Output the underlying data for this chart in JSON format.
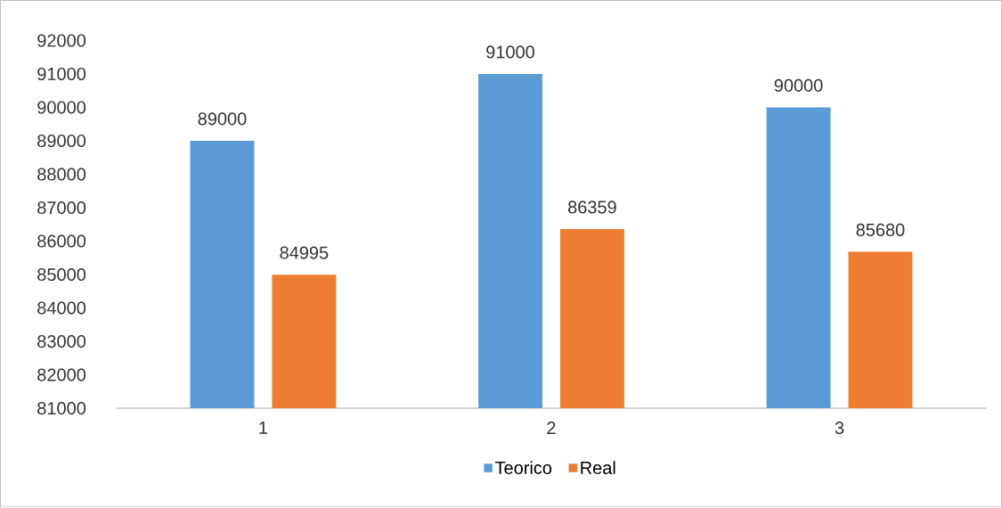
{
  "chart_data": {
    "type": "bar",
    "categories": [
      "1",
      "2",
      "3"
    ],
    "series": [
      {
        "name": "Teorico",
        "color": "#5b9bd5",
        "values": [
          89000,
          91000,
          90000
        ]
      },
      {
        "name": "Real",
        "color": "#ed7d31",
        "values": [
          84995,
          86359,
          85680
        ]
      }
    ],
    "ylim": [
      81000,
      92000
    ],
    "yticks": [
      81000,
      82000,
      83000,
      84000,
      85000,
      86000,
      87000,
      88000,
      89000,
      90000,
      91000,
      92000
    ],
    "data_labels": true,
    "legend": "bottom"
  }
}
